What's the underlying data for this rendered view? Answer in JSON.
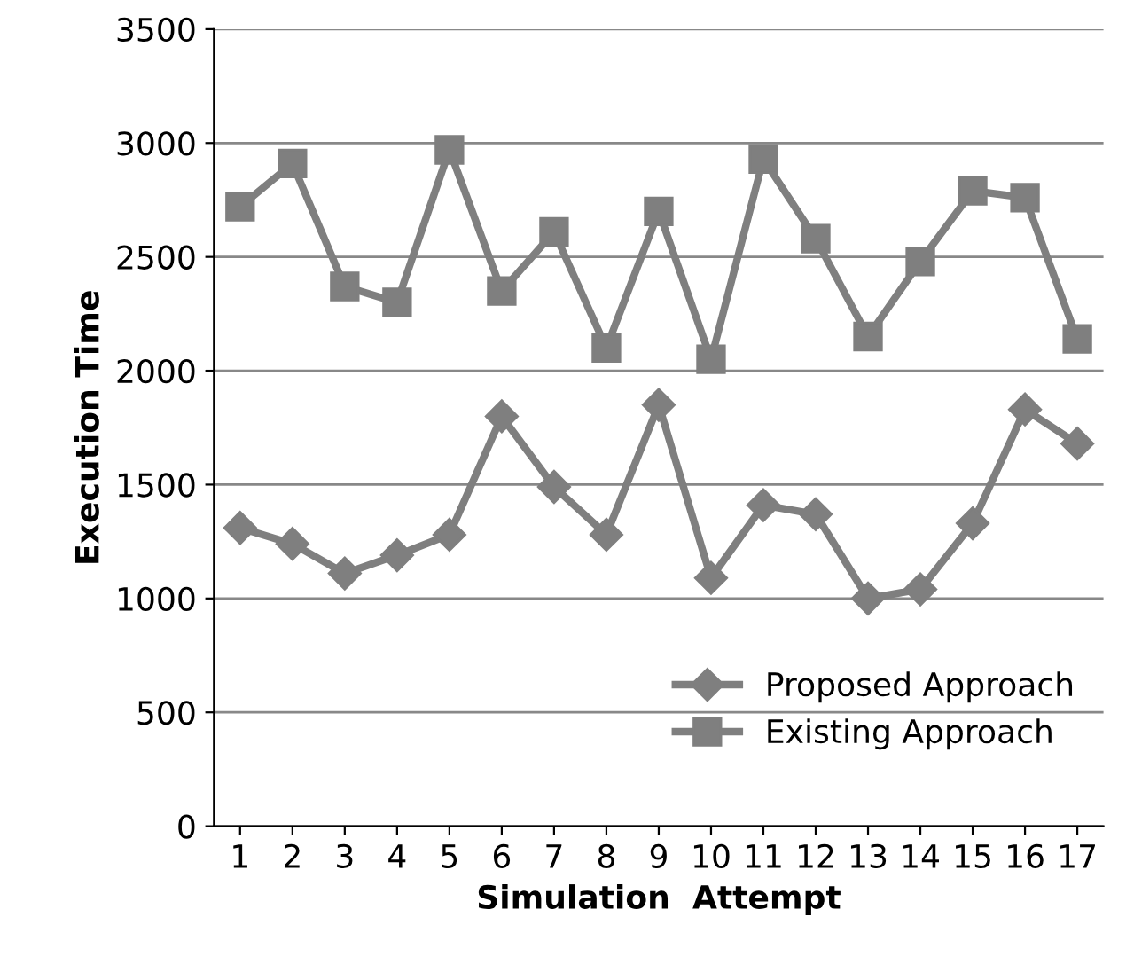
{
  "chart_data": {
    "type": "line",
    "xlabel": "Simulation  Attempt",
    "ylabel": "Execution Time",
    "categories": [
      "1",
      "2",
      "3",
      "4",
      "5",
      "6",
      "7",
      "8",
      "9",
      "10",
      "11",
      "12",
      "13",
      "14",
      "15",
      "16",
      "17"
    ],
    "series": [
      {
        "name": "Proposed Approach",
        "color": "#7f7f7f",
        "marker": "diamond",
        "values": [
          1310,
          1240,
          1110,
          1190,
          1280,
          1800,
          1490,
          1280,
          1850,
          1090,
          1410,
          1370,
          1000,
          1040,
          1330,
          1830,
          1680
        ]
      },
      {
        "name": "Existing Approach",
        "color": "#7f7f7f",
        "marker": "square",
        "values": [
          2720,
          2910,
          2370,
          2300,
          2970,
          2350,
          2610,
          2100,
          2700,
          2050,
          2930,
          2580,
          2150,
          2480,
          2790,
          2760,
          2140
        ]
      }
    ],
    "ylim": [
      0,
      3500
    ],
    "yticks": [
      0,
      500,
      1000,
      1500,
      2000,
      2500,
      3000,
      3500
    ],
    "grid": "y",
    "legend": "bottom right",
    "line_style": "solid"
  }
}
